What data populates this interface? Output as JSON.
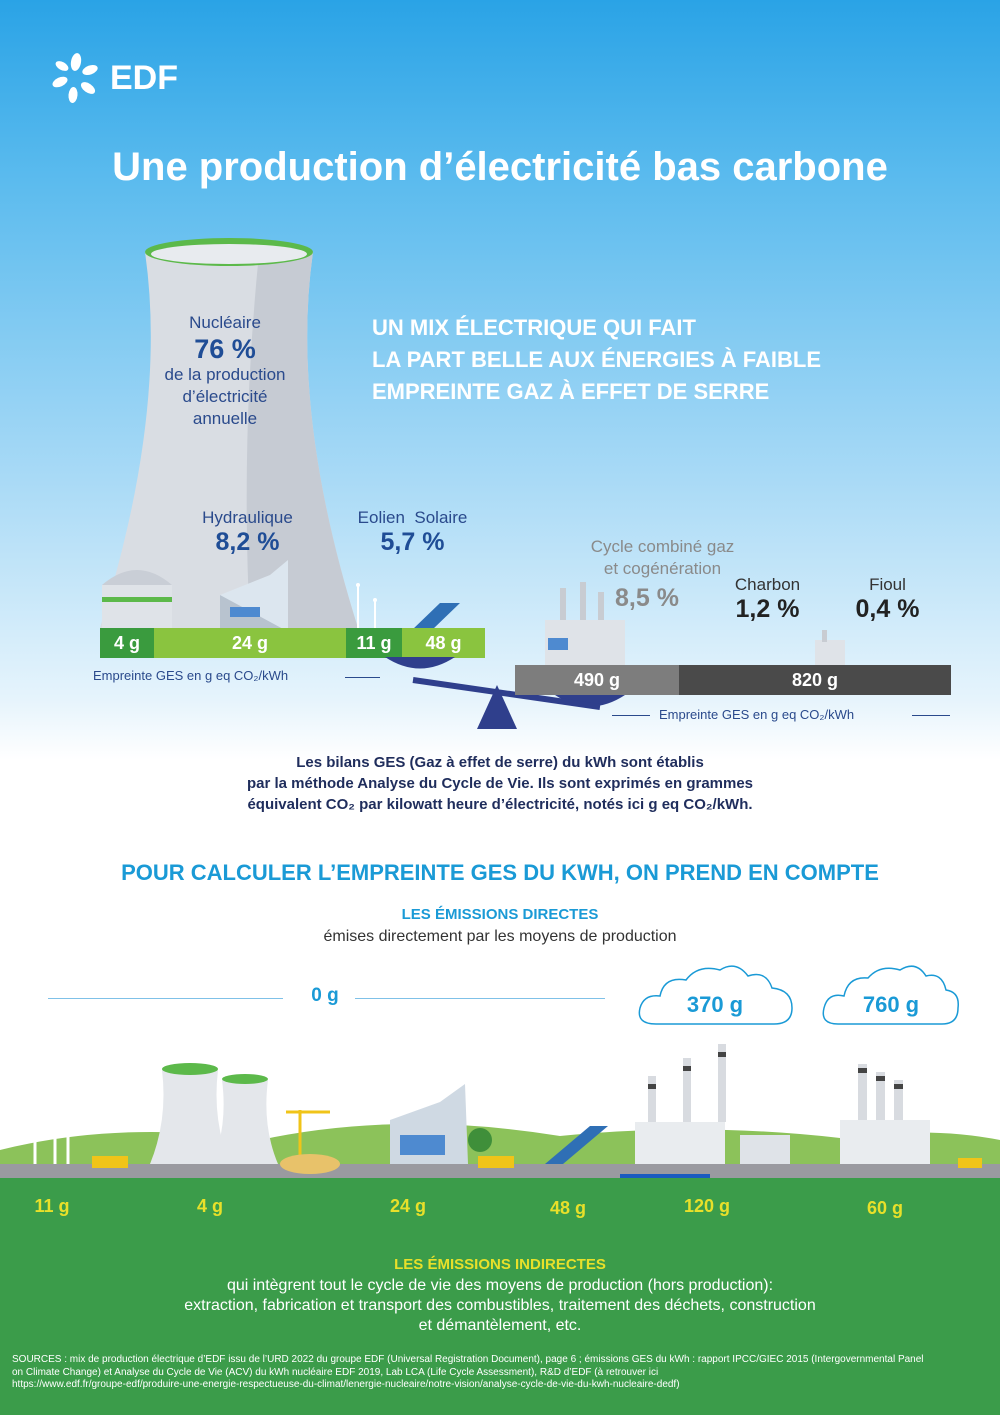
{
  "brand": {
    "name": "EDF"
  },
  "title": "Une production d’électricité bas carbone",
  "nuclear": {
    "label": "Nucléaire",
    "value": "76 %",
    "desc": [
      "de la production",
      "d’électricité",
      "annuelle"
    ]
  },
  "mix_headline": [
    "UN MIX ÉLECTRIQUE QUI FAIT",
    "LA PART BELLE AUX ÉNERGIES À FAIBLE",
    "EMPREINTE GAZ À EFFET DE SERRE"
  ],
  "hydro": {
    "label": "Hydraulique",
    "value": "8,2 %"
  },
  "renew": {
    "label1": "Eolien",
    "label2": "Solaire",
    "value": "5,7 %"
  },
  "gas": {
    "label1": "Cycle combiné gaz",
    "label2": "et cogénération",
    "value": "8,5 %"
  },
  "coal": {
    "label": "Charbon",
    "value": "1,2 %"
  },
  "oil": {
    "label": "Fioul",
    "value": "0,4 %"
  },
  "low_bar": [
    "4 g",
    "24 g",
    "11 g",
    "48 g"
  ],
  "high_bar": [
    "490 g",
    "820 g"
  ],
  "footprint_note": "Empreinte GES en g eq CO₂/kWh",
  "explanation": [
    "Les bilans GES (Gaz à effet de serre) du kWh sont établis",
    "par la méthode Analyse du Cycle de Vie. Ils sont exprimés en grammes",
    "équivalent CO₂ par kilowatt heure d’électricité, notés ici g eq CO₂/kWh."
  ],
  "calc_title": "POUR CALCULER L’EMPREINTE GES DU KWH, ON PREND EN COMPTE",
  "direct": {
    "title": "LES ÉMISSIONS DIRECTES",
    "subtitle": "émises directement par les moyens de production",
    "zero": "0 g",
    "gas": "370 g",
    "coal": "760 g"
  },
  "indirect_values": [
    "11 g",
    "4 g",
    "24 g",
    "48 g",
    "120 g",
    "60 g"
  ],
  "indirect": {
    "title": "LES ÉMISSIONS INDIRECTES",
    "lines": [
      "qui intègrent tout le cycle de vie des moyens de production (hors production):",
      "extraction, fabrication et transport des combustibles, traitement des déchets, construction",
      "et démantèlement, etc."
    ]
  },
  "sources": [
    "SOURCES : mix de production électrique d’EDF issu de l’URD 2022 du groupe EDF (Universal Registration Document), page 6 ; émissions GES du kWh : rapport IPCC/GIEC 2015 (Intergovernmental Panel",
    "on Climate Change) et Analyse du Cycle de Vie (ACV) du kWh nucléaire EDF 2019, Lab LCA (Life Cycle Assessment), R&D d’EDF (à retrouver ici",
    "https://www.edf.fr/groupe-edf/produire-une-energie-respectueuse-du-climat/lenergie-nucleaire/notre-vision/analyse-cycle-de-vie-du-kwh-nucleaire-dedf)"
  ]
}
